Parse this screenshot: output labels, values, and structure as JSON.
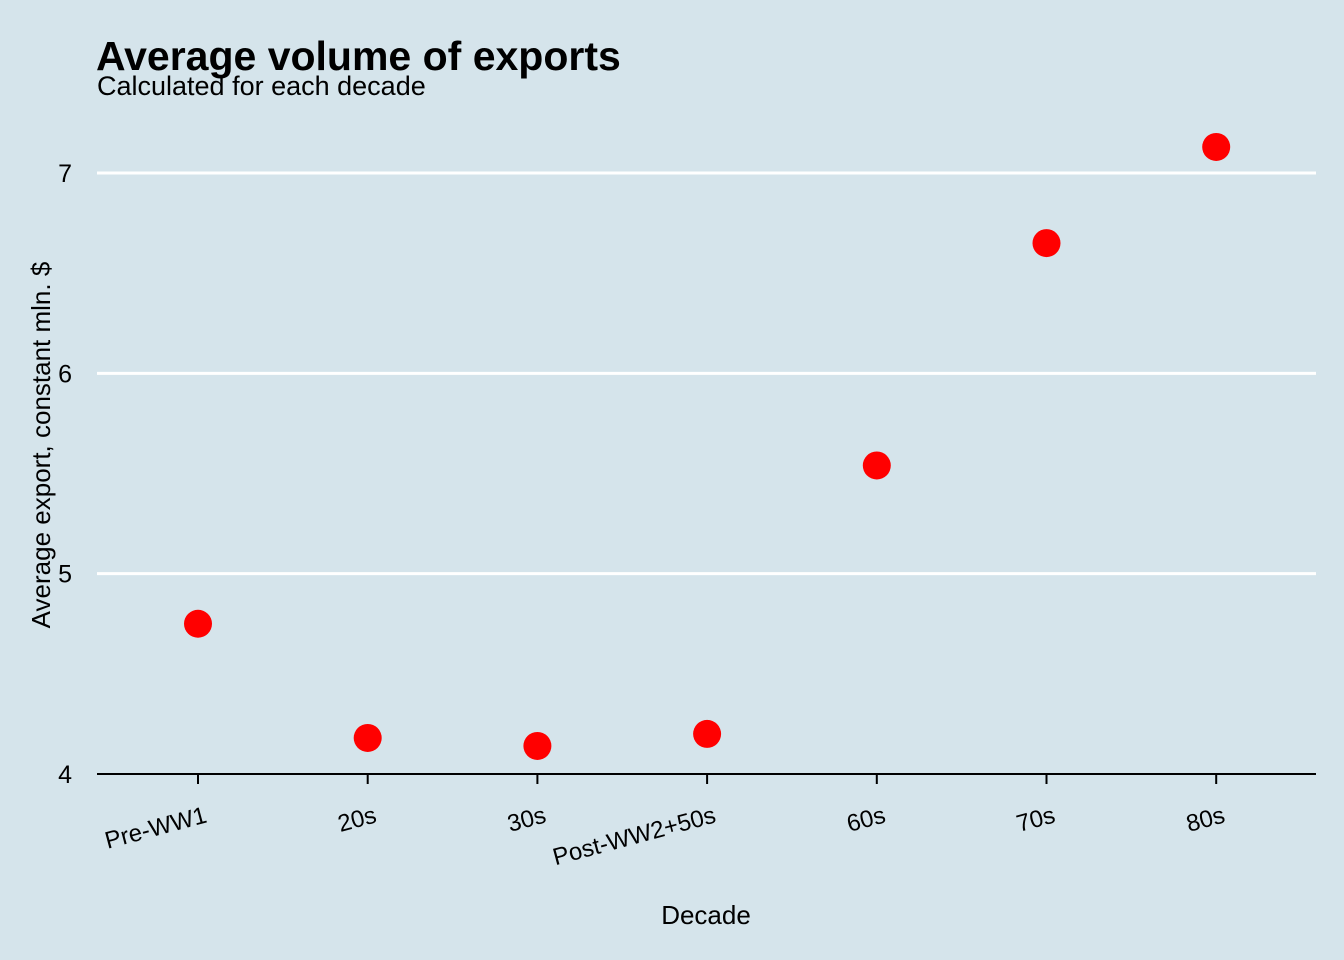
{
  "chart_data": {
    "type": "scatter",
    "title": "Average volume of exports",
    "subtitle": "Calculated for each decade",
    "xlabel": "Decade",
    "ylabel": "Average export, constant mln. $",
    "categories": [
      "Pre-WW1",
      "20s",
      "30s",
      "Post-WW2+50s",
      "60s",
      "70s",
      "80s"
    ],
    "values": [
      4.75,
      4.18,
      4.14,
      4.2,
      5.54,
      6.65,
      7.13
    ],
    "ylim": [
      4,
      7.3
    ],
    "yticks": [
      "4",
      "5",
      "6",
      "7"
    ],
    "grid": "horizontal",
    "legend": "none",
    "colors": {
      "background": "#d5e4eb",
      "point": "#ff0000",
      "grid": "#ffffff",
      "axis": "#000000"
    }
  }
}
